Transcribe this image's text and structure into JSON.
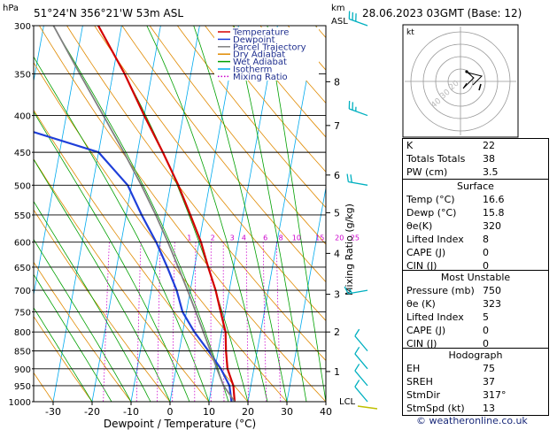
{
  "header": {
    "station": "51°24'N  356°21'W  53m  ASL",
    "datetime": "28.06.2023  03GMT  (Base: 12)"
  },
  "axes": {
    "hpa_label": "hPa",
    "km_label": "km",
    "asl_label": "ASL",
    "xlabel": "Dewpoint / Temperature (°C)",
    "mixing_label": "Mixing Ratio (g/kg)",
    "kt_label": "kt",
    "lcl_label": "LCL"
  },
  "legend": [
    {
      "name": "Temperature",
      "color": "#d40000"
    },
    {
      "name": "Dewpoint",
      "color": "#1f3fd9"
    },
    {
      "name": "Parcel Trajectory",
      "color": "#808080"
    },
    {
      "name": "Dry Adiabat",
      "color": "#e08a00"
    },
    {
      "name": "Wet Adiabat",
      "color": "#00a000"
    },
    {
      "name": "Isotherm",
      "color": "#00aaee"
    },
    {
      "name": "Mixing Ratio",
      "color": "#cc00cc"
    }
  ],
  "chart_data": {
    "type": "line",
    "pressure_levels": [
      300,
      350,
      400,
      450,
      500,
      550,
      600,
      650,
      700,
      750,
      800,
      850,
      900,
      950,
      1000
    ],
    "x_ticks": [
      -30,
      -20,
      -10,
      0,
      10,
      20,
      30,
      40
    ],
    "xlim": [
      -35,
      40
    ],
    "ylim": [
      1000,
      300
    ],
    "y_scale": "log",
    "skew_deg_per_decade_px": 148,
    "km_ticks": [
      {
        "label": "8",
        "p": 359
      },
      {
        "label": "7",
        "p": 413
      },
      {
        "label": "6",
        "p": 484
      },
      {
        "label": "5",
        "p": 546
      },
      {
        "label": "4",
        "p": 622
      },
      {
        "label": "3",
        "p": 709
      },
      {
        "label": "2",
        "p": 800
      },
      {
        "label": "1",
        "p": 908
      }
    ],
    "mixing_ratio_labels": [
      "1",
      "2",
      "3",
      "4",
      "6",
      "8",
      "10",
      "15",
      "20",
      "25"
    ],
    "mixing_ratio_label_p": 600,
    "mixing_ratio_label_t": [
      -2.5,
      3.5,
      8.5,
      11.5,
      17,
      21,
      25,
      31,
      36,
      40
    ],
    "series": [
      {
        "name": "Temperature",
        "points": [
          [
            1000,
            16.6
          ],
          [
            950,
            15.5
          ],
          [
            900,
            13.2
          ],
          [
            850,
            12.0
          ],
          [
            800,
            11.0
          ],
          [
            750,
            8.8
          ],
          [
            700,
            6.5
          ],
          [
            650,
            3.5
          ],
          [
            600,
            0.5
          ],
          [
            550,
            -3.5
          ],
          [
            500,
            -8.0
          ],
          [
            450,
            -13.5
          ],
          [
            400,
            -20.0
          ],
          [
            350,
            -27.0
          ],
          [
            300,
            -36.0
          ]
        ]
      },
      {
        "name": "Dewpoint",
        "points": [
          [
            1000,
            15.8
          ],
          [
            950,
            14.5
          ],
          [
            900,
            11.5
          ],
          [
            850,
            7.5
          ],
          [
            800,
            3.0
          ],
          [
            750,
            -1.0
          ],
          [
            700,
            -3.5
          ],
          [
            650,
            -7.0
          ],
          [
            600,
            -11.0
          ],
          [
            550,
            -16.0
          ],
          [
            500,
            -21.0
          ],
          [
            450,
            -30.0
          ],
          [
            400,
            -62.0
          ],
          [
            350,
            -67.0
          ],
          [
            300,
            -67.0
          ]
        ]
      },
      {
        "name": "Parcel Trajectory",
        "points": [
          [
            1000,
            16.6
          ],
          [
            950,
            13.0
          ],
          [
            900,
            10.5
          ],
          [
            850,
            8.0
          ],
          [
            800,
            5.3
          ],
          [
            750,
            2.4
          ],
          [
            700,
            -0.7
          ],
          [
            650,
            -4.2
          ],
          [
            600,
            -8.0
          ],
          [
            550,
            -12.4
          ],
          [
            500,
            -17.5
          ],
          [
            450,
            -23.5
          ],
          [
            400,
            -30.5
          ],
          [
            350,
            -38.5
          ],
          [
            300,
            -47.5
          ]
        ]
      }
    ],
    "wind_barbs": [
      {
        "p": 300,
        "spd": 30,
        "dir": 290
      },
      {
        "p": 400,
        "spd": 25,
        "dir": 290
      },
      {
        "p": 500,
        "spd": 20,
        "dir": 280
      },
      {
        "p": 700,
        "spd": 15,
        "dir": 260
      },
      {
        "p": 850,
        "spd": 10,
        "dir": 320
      },
      {
        "p": 900,
        "spd": 10,
        "dir": 320
      },
      {
        "p": 950,
        "spd": 10,
        "dir": 320
      },
      {
        "p": 1000,
        "spd": 10,
        "dir": 320
      }
    ]
  },
  "hodograph": {
    "ring_labels": [
      "40",
      "30",
      "20"
    ]
  },
  "indices": {
    "top": [
      {
        "label": "K",
        "value": "22"
      },
      {
        "label": "Totals Totals",
        "value": "38"
      },
      {
        "label": "PW (cm)",
        "value": "3.5"
      }
    ],
    "surface_title": "Surface",
    "surface": [
      {
        "label": "Temp (°C)",
        "value": "16.6"
      },
      {
        "label": "Dewp (°C)",
        "value": "15.8"
      },
      {
        "label": "θe(K)",
        "value": "320"
      },
      {
        "label": "Lifted Index",
        "value": "8"
      },
      {
        "label": "CAPE (J)",
        "value": "0"
      },
      {
        "label": "CIN (J)",
        "value": "0"
      }
    ],
    "unstable_title": "Most Unstable",
    "unstable": [
      {
        "label": "Pressure (mb)",
        "value": "750"
      },
      {
        "label": "θe (K)",
        "value": "323"
      },
      {
        "label": "Lifted Index",
        "value": "5"
      },
      {
        "label": "CAPE (J)",
        "value": "0"
      },
      {
        "label": "CIN (J)",
        "value": "0"
      }
    ],
    "hodo_title": "Hodograph",
    "hodo": [
      {
        "label": "EH",
        "value": "75"
      },
      {
        "label": "SREH",
        "value": "37"
      },
      {
        "label": "StmDir",
        "value": "317°"
      },
      {
        "label": "StmSpd (kt)",
        "value": "13"
      }
    ]
  },
  "footer": {
    "copyright": "© weatheronline.co.uk"
  }
}
